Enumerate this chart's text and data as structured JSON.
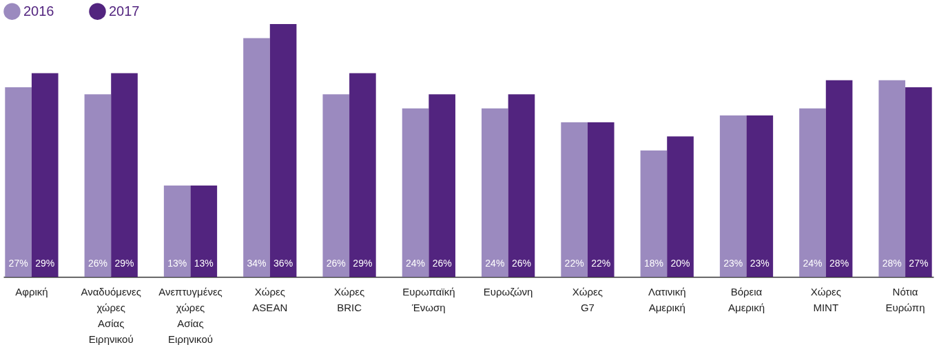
{
  "chart_data": {
    "type": "bar",
    "categories": [
      "Αφρική",
      "Αναδυόμενες χώρες Ασίας Ειρηνικού",
      "Ανεπτυγμένες χώρες Ασίας Ειρηνικού",
      "Χώρες ASEAN",
      "Χώρες BRIC",
      "Ευρωπαϊκή Ένωση",
      "Ευρωζώνη",
      "Χώρες G7",
      "Λατινική Αμερική",
      "Βόρεια Αμερική",
      "Χώρες MINT",
      "Νότια Ευρώπη"
    ],
    "series": [
      {
        "name": "2016",
        "color": "#9b8abf",
        "values": [
          27,
          26,
          13,
          34,
          26,
          24,
          24,
          22,
          18,
          23,
          24,
          28
        ],
        "value_labels": [
          "27%",
          "26%",
          "13%",
          "34%",
          "26%",
          "24%",
          "24%",
          "22%",
          "18%",
          "23%",
          "24%",
          "28%"
        ]
      },
      {
        "name": "2017",
        "color": "#52247f",
        "values": [
          29,
          29,
          13,
          36,
          29,
          26,
          26,
          22,
          20,
          23,
          28,
          27
        ],
        "value_labels": [
          "29%",
          "29%",
          "13%",
          "36%",
          "29%",
          "26%",
          "26%",
          "22%",
          "20%",
          "23%",
          "28%",
          "27%"
        ]
      }
    ],
    "legend": "top left",
    "grid": false
  }
}
